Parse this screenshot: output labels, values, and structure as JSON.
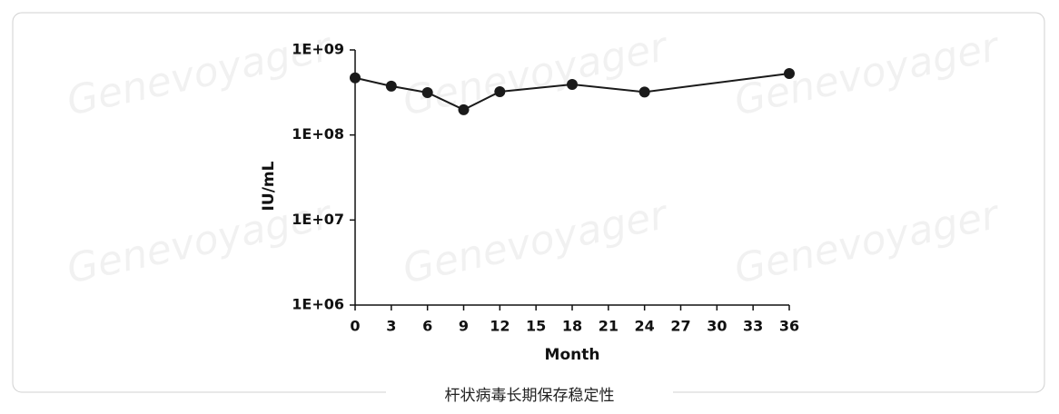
{
  "chart_data": {
    "type": "line",
    "title": "杆状病毒长期保存稳定性",
    "x_label": "Month",
    "y_label": "IU/mL",
    "watermark": "Genevoyager",
    "x": [
      0,
      3,
      6,
      9,
      12,
      18,
      24,
      36
    ],
    "series": [
      {
        "name": "IU/mL",
        "color": "#1a1a1a",
        "values": [
          470000000,
          375000000,
          315000000,
          198000000,
          323000000,
          393000000,
          320000000,
          528000000
        ]
      }
    ],
    "xlim": [
      0,
      36
    ],
    "xticks": [
      0,
      3,
      6,
      9,
      12,
      15,
      18,
      21,
      24,
      27,
      30,
      33,
      36
    ],
    "ylim": [
      1000000,
      1000000000
    ],
    "y_scale": "log",
    "yticks": [
      {
        "value": 1000000,
        "label": "1E+06"
      },
      {
        "value": 10000000,
        "label": "1E+07"
      },
      {
        "value": 100000000,
        "label": "1E+08"
      },
      {
        "value": 1000000000,
        "label": "1E+09"
      }
    ],
    "grid": false
  }
}
